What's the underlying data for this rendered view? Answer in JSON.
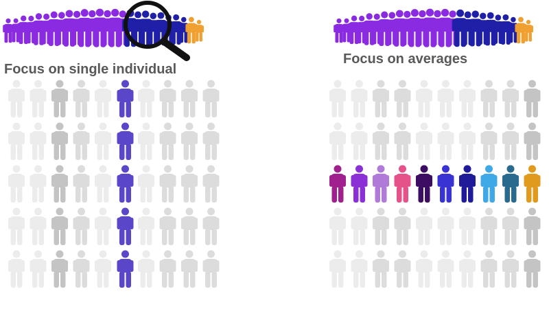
{
  "panels": {
    "left": {
      "caption": "Focus on single individual"
    },
    "right": {
      "caption": "Focus on averages"
    }
  },
  "icons": {
    "person": "person-icon",
    "magnifier": "magnifying-glass-icon"
  },
  "colors": {
    "crowd_purple": "#8a2be2",
    "crowd_blue": "#1f1fa8",
    "crowd_orange": "#f0a030",
    "highlight_column": "#5a46c8",
    "lens": "#111111",
    "grey_light": "#ececec",
    "grey_mid": "#dcdcdc",
    "grey_dark": "#c4c4c4",
    "average_row": [
      "#a0208e",
      "#8b2fd6",
      "#b07ad9",
      "#e5528a",
      "#3c0d63",
      "#3a33d4",
      "#1f1b99",
      "#3ea9e6",
      "#2a6a8f",
      "#e09a1e"
    ]
  },
  "left_grid": {
    "rows": 5,
    "cols": 10,
    "highlight_col": 5
  },
  "right_grid": {
    "rows": 5,
    "cols": 10,
    "highlight_row": 2
  }
}
